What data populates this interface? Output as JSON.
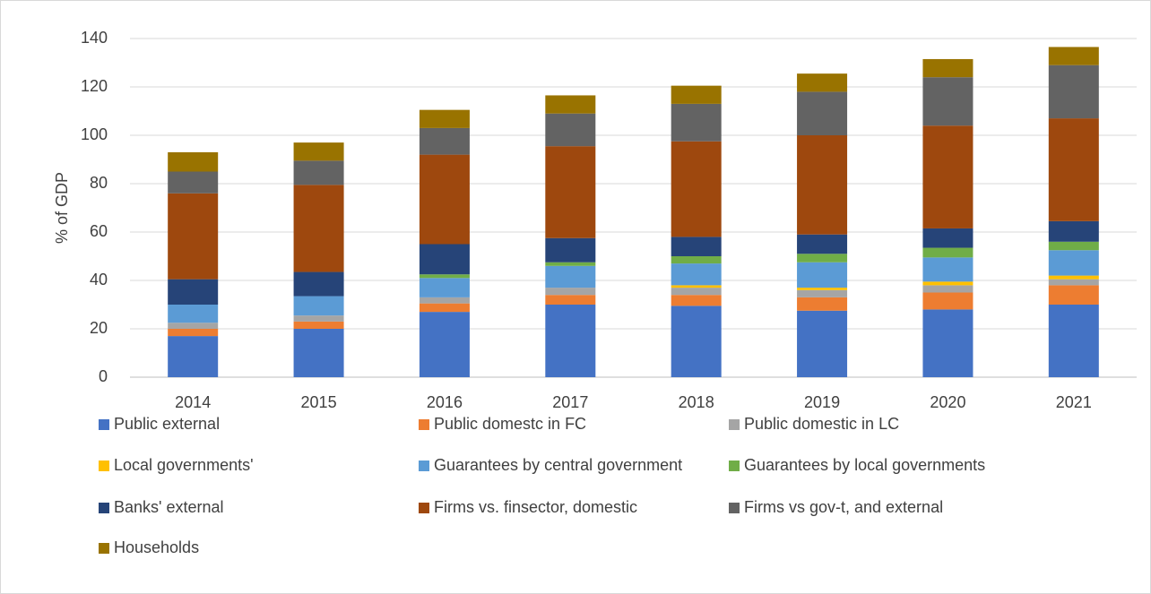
{
  "chart_data": {
    "type": "stacked_bar",
    "categories": [
      "2014",
      "2015",
      "2016",
      "2017",
      "2018",
      "2019",
      "2020",
      "2021"
    ],
    "y_label": "% of GDP",
    "ylim": [
      0,
      140
    ],
    "yticks": [
      0,
      20,
      40,
      60,
      80,
      100,
      120,
      140
    ],
    "grid": true,
    "legend": "bottom",
    "series": [
      {
        "name": "Public external",
        "color": "#4472c4",
        "values": [
          17,
          20,
          27,
          30,
          29.5,
          27.5,
          28,
          30
        ]
      },
      {
        "name": "Public domestc in FC",
        "color": "#ed7d31",
        "values": [
          3,
          3,
          3.5,
          4,
          4.5,
          5.5,
          7,
          8
        ]
      },
      {
        "name": "Public domestic in LC",
        "color": "#a5a5a5",
        "values": [
          2.5,
          2.5,
          2.5,
          3,
          3,
          3,
          3,
          2.5
        ]
      },
      {
        "name": "Local governments'",
        "color": "#ffc000",
        "values": [
          0,
          0,
          0,
          0,
          1,
          1,
          1.5,
          1.5
        ]
      },
      {
        "name": "Guarantees by central government",
        "color": "#5b9bd5",
        "values": [
          7.5,
          8,
          8,
          9,
          9,
          10.5,
          10,
          10.5
        ]
      },
      {
        "name": "Guarantees by local governments",
        "color": "#70ad47",
        "values": [
          0,
          0,
          1.5,
          1.5,
          3,
          3.5,
          4,
          3.5
        ]
      },
      {
        "name": "Banks' external",
        "color": "#264478",
        "values": [
          10.5,
          10,
          12.5,
          10,
          8,
          8,
          8,
          8.5
        ]
      },
      {
        "name": "Firms vs. finsector, domestic",
        "color": "#9e480e",
        "values": [
          35.5,
          36,
          37,
          38,
          39.5,
          41,
          42.5,
          42.5
        ]
      },
      {
        "name": "Firms vs gov-t, and external",
        "color": "#636363",
        "values": [
          9,
          10,
          11,
          13.5,
          15.5,
          18,
          20,
          22
        ]
      },
      {
        "name": "Households",
        "color": "#997300",
        "values": [
          8,
          7.5,
          7.5,
          7.5,
          7.5,
          7.5,
          7.5,
          7.5
        ]
      }
    ]
  }
}
